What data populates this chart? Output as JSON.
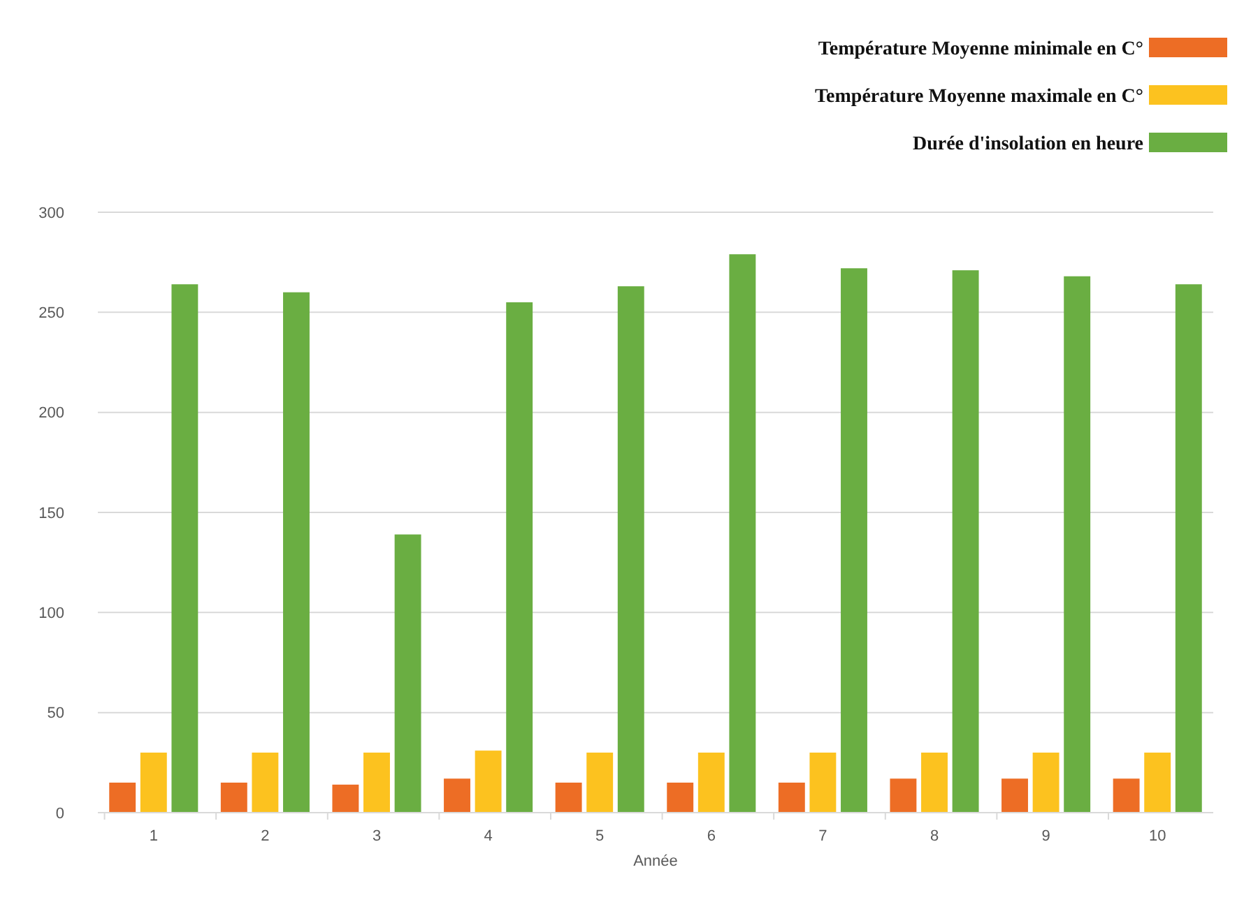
{
  "chart_data": {
    "type": "bar",
    "xlabel": "Année",
    "categories": [
      "1",
      "2",
      "3",
      "4",
      "5",
      "6",
      "7",
      "8",
      "9",
      "10"
    ],
    "series": [
      {
        "name": "Température Moyenne minimale en C°",
        "color": "#ed6d25",
        "values": [
          15,
          15,
          14,
          17,
          15,
          15,
          15,
          17,
          17,
          17
        ]
      },
      {
        "name": "Température Moyenne maximale en C°",
        "color": "#fcc21f",
        "values": [
          30,
          30,
          30,
          31,
          30,
          30,
          30,
          30,
          30,
          30
        ]
      },
      {
        "name": "Durée d'insolation en heure",
        "color": "#6aae42",
        "values": [
          264,
          260,
          139,
          255,
          263,
          279,
          272,
          271,
          268,
          264
        ]
      }
    ],
    "ylim": [
      0,
      300
    ],
    "yticks": [
      0,
      50,
      100,
      150,
      200,
      250,
      300
    ],
    "grid": "y",
    "legend": "top right"
  }
}
